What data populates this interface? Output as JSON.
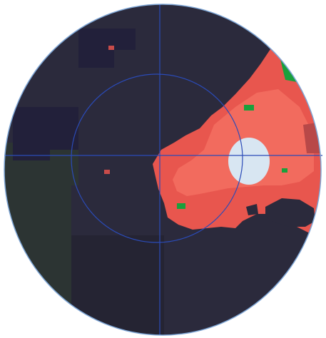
{
  "colors": {
    "background": "#ffffff",
    "dark_field": "#2b2a3c",
    "dark_field_alt": "#252433",
    "dark_field_green": "#2c3433",
    "deep_region": "#22203a",
    "red_region": "#e8564e",
    "red_region_light": "#f26b5e",
    "red_region_dark": "#b84848",
    "red_deep": "#c94c4a",
    "green_spot": "#1aa03c",
    "optic_disc": "#d8e6f2",
    "overlay_lines": "#2b4bb8",
    "boundary_ring": "#7ea6d6"
  },
  "legend": []
}
